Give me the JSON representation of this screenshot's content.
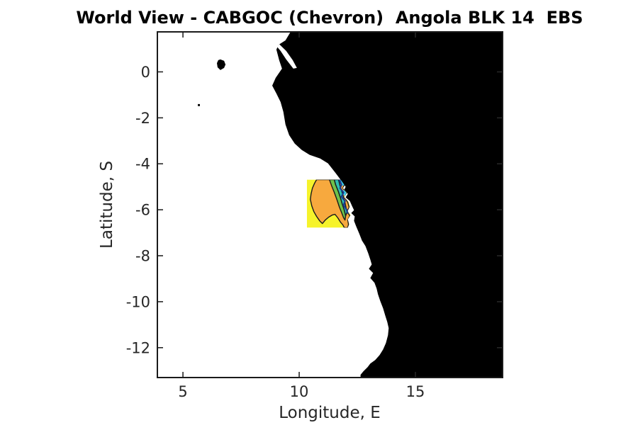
{
  "title": "World View - CABGOC (Chevron)  Angola BLK 14  EBS",
  "axes": {
    "xlabel": "Longitude, E",
    "ylabel": "Latitude, S",
    "xlim": [
      3.9,
      18.75
    ],
    "ylim": [
      -13.3,
      1.74
    ],
    "xticks": [
      5,
      10,
      15
    ],
    "xtick_labels": [
      "5",
      "10",
      "15"
    ],
    "yticks": [
      0,
      -2,
      -4,
      -6,
      -8,
      -10,
      -12
    ],
    "ytick_labels": [
      "0",
      "-2",
      "-4",
      "-6",
      "-8",
      "-10",
      "-12"
    ],
    "tick_color": "#262626",
    "frame_color": "#1a1a1a"
  },
  "chart_data": {
    "type": "heatmap",
    "subtype": "coastline-map-with-contourf-block",
    "ocean_color": "#ffffff",
    "land_color": "#000000",
    "coastline_mainland": [
      [
        9.63,
        1.74
      ],
      [
        9.41,
        1.37
      ],
      [
        9.11,
        1.18
      ],
      [
        9.02,
        0.97
      ],
      [
        9.14,
        0.51
      ],
      [
        9.26,
        0.14
      ],
      [
        8.99,
        -0.26
      ],
      [
        8.84,
        -0.6
      ],
      [
        9.02,
        -0.94
      ],
      [
        9.2,
        -1.31
      ],
      [
        9.32,
        -1.74
      ],
      [
        9.41,
        -2.29
      ],
      [
        9.57,
        -2.75
      ],
      [
        9.81,
        -3.12
      ],
      [
        10.11,
        -3.4
      ],
      [
        10.45,
        -3.61
      ],
      [
        10.9,
        -3.77
      ],
      [
        11.24,
        -3.98
      ],
      [
        11.55,
        -4.38
      ],
      [
        11.85,
        -4.78
      ],
      [
        12.0,
        -5.0
      ],
      [
        11.94,
        -5.12
      ],
      [
        12.09,
        -5.31
      ],
      [
        12.0,
        -5.46
      ],
      [
        12.18,
        -5.62
      ],
      [
        12.27,
        -5.83
      ],
      [
        12.36,
        -6.02
      ],
      [
        12.24,
        -6.14
      ],
      [
        12.39,
        -6.29
      ],
      [
        12.36,
        -6.48
      ],
      [
        12.45,
        -6.72
      ],
      [
        12.58,
        -7.03
      ],
      [
        12.7,
        -7.34
      ],
      [
        12.85,
        -7.58
      ],
      [
        12.97,
        -7.89
      ],
      [
        13.06,
        -8.17
      ],
      [
        13.12,
        -8.38
      ],
      [
        13.0,
        -8.57
      ],
      [
        13.18,
        -8.75
      ],
      [
        13.06,
        -8.97
      ],
      [
        13.24,
        -9.18
      ],
      [
        13.33,
        -9.43
      ],
      [
        13.39,
        -9.68
      ],
      [
        13.49,
        -9.98
      ],
      [
        13.61,
        -10.29
      ],
      [
        13.7,
        -10.6
      ],
      [
        13.79,
        -10.88
      ],
      [
        13.85,
        -11.15
      ],
      [
        13.82,
        -11.46
      ],
      [
        13.73,
        -11.8
      ],
      [
        13.61,
        -12.08
      ],
      [
        13.46,
        -12.32
      ],
      [
        13.27,
        -12.54
      ],
      [
        13.06,
        -12.69
      ],
      [
        12.94,
        -12.85
      ],
      [
        12.76,
        -13.03
      ],
      [
        12.64,
        -13.18
      ],
      [
        12.64,
        -13.35
      ],
      [
        18.8,
        -13.35
      ],
      [
        18.8,
        1.79
      ]
    ],
    "estuary_inlet": [
      [
        9.14,
        1.21
      ],
      [
        9.44,
        0.91
      ],
      [
        9.72,
        0.51
      ],
      [
        9.9,
        0.17
      ],
      [
        9.75,
        0.14
      ],
      [
        9.44,
        0.54
      ],
      [
        9.2,
        0.91
      ],
      [
        9.05,
        1.09
      ]
    ],
    "islands": [
      {
        "name": "island-sao-tome",
        "points": [
          [
            6.61,
            0.54
          ],
          [
            6.77,
            0.48
          ],
          [
            6.83,
            0.32
          ],
          [
            6.77,
            0.17
          ],
          [
            6.61,
            0.08
          ],
          [
            6.49,
            0.2
          ],
          [
            6.46,
            0.38
          ],
          [
            6.52,
            0.51
          ]
        ]
      },
      {
        "name": "island-annobon",
        "points": [
          [
            5.64,
            -1.4
          ],
          [
            5.73,
            -1.4
          ],
          [
            5.73,
            -1.49
          ],
          [
            5.64,
            -1.49
          ]
        ]
      }
    ],
    "survey_block": {
      "bounds_lon": [
        10.33,
        12.34
      ],
      "bounds_lat": [
        -6.78,
        -4.69
      ],
      "clip": [
        [
          10.33,
          -4.69
        ],
        [
          11.94,
          -4.69
        ],
        [
          12.0,
          -4.88
        ],
        [
          11.88,
          -5.06
        ],
        [
          12.06,
          -5.25
        ],
        [
          11.94,
          -5.46
        ],
        [
          12.12,
          -5.65
        ],
        [
          12.18,
          -5.86
        ],
        [
          12.09,
          -6.05
        ],
        [
          12.21,
          -6.23
        ],
        [
          12.09,
          -6.42
        ],
        [
          12.15,
          -6.63
        ],
        [
          12.09,
          -6.78
        ],
        [
          10.33,
          -6.78
        ]
      ],
      "bands": [
        {
          "name": "band-yellow",
          "color": "#F6F32B",
          "stroke": "none",
          "points": [
            [
              10.33,
              -4.69
            ],
            [
              12.34,
              -4.69
            ],
            [
              12.34,
              -6.78
            ],
            [
              10.33,
              -6.78
            ]
          ]
        },
        {
          "name": "band-orange",
          "color": "#F7A93E",
          "stroke": "#1a1a1a",
          "points": [
            [
              10.75,
              -4.69
            ],
            [
              10.66,
              -4.85
            ],
            [
              10.57,
              -5.06
            ],
            [
              10.51,
              -5.31
            ],
            [
              10.48,
              -5.55
            ],
            [
              10.54,
              -5.83
            ],
            [
              10.63,
              -6.08
            ],
            [
              10.75,
              -6.29
            ],
            [
              10.88,
              -6.48
            ],
            [
              11.0,
              -6.6
            ],
            [
              11.12,
              -6.45
            ],
            [
              11.27,
              -6.32
            ],
            [
              11.42,
              -6.23
            ],
            [
              11.54,
              -6.2
            ],
            [
              11.66,
              -6.35
            ],
            [
              11.78,
              -6.54
            ],
            [
              11.88,
              -6.66
            ],
            [
              11.94,
              -6.78
            ],
            [
              12.09,
              -6.78
            ],
            [
              12.12,
              -6.63
            ],
            [
              12.09,
              -6.45
            ],
            [
              12.18,
              -6.26
            ],
            [
              12.06,
              -6.08
            ],
            [
              12.15,
              -5.89
            ],
            [
              12.09,
              -5.68
            ],
            [
              11.97,
              -5.49
            ],
            [
              12.03,
              -5.28
            ],
            [
              11.88,
              -5.06
            ],
            [
              11.97,
              -4.85
            ],
            [
              11.91,
              -4.69
            ]
          ]
        },
        {
          "name": "band-green",
          "color": "#6FC24A",
          "stroke": "#1a1a1a",
          "points": [
            [
              11.3,
              -4.69
            ],
            [
              11.39,
              -4.94
            ],
            [
              11.51,
              -5.25
            ],
            [
              11.63,
              -5.58
            ],
            [
              11.72,
              -5.86
            ],
            [
              11.82,
              -6.11
            ],
            [
              11.91,
              -6.35
            ],
            [
              11.97,
              -6.45
            ],
            [
              12.0,
              -6.26
            ],
            [
              11.94,
              -6.02
            ],
            [
              11.85,
              -5.74
            ],
            [
              11.78,
              -5.49
            ],
            [
              11.69,
              -5.22
            ],
            [
              11.57,
              -4.91
            ],
            [
              11.51,
              -4.69
            ]
          ]
        },
        {
          "name": "band-teal",
          "color": "#2EBFB4",
          "stroke": "#1a1a1a",
          "points": [
            [
              11.51,
              -4.69
            ],
            [
              11.57,
              -4.91
            ],
            [
              11.69,
              -5.22
            ],
            [
              11.78,
              -5.49
            ],
            [
              11.85,
              -5.74
            ],
            [
              11.94,
              -6.02
            ],
            [
              12.0,
              -6.26
            ],
            [
              12.06,
              -6.11
            ],
            [
              12.0,
              -5.83
            ],
            [
              11.94,
              -5.55
            ],
            [
              11.85,
              -5.25
            ],
            [
              11.76,
              -4.97
            ],
            [
              11.69,
              -4.69
            ]
          ]
        },
        {
          "name": "band-lightblue-a",
          "color": "#3FCFEC",
          "stroke": "none",
          "points": [
            [
              11.76,
              -4.69
            ],
            [
              11.94,
              -4.69
            ],
            [
              12.0,
              -4.85
            ],
            [
              11.88,
              -4.97
            ],
            [
              11.76,
              -4.82
            ]
          ]
        },
        {
          "name": "band-lightblue-b",
          "color": "#3FCFEC",
          "stroke": "none",
          "points": [
            [
              11.91,
              -5.12
            ],
            [
              12.03,
              -5.25
            ],
            [
              11.97,
              -5.43
            ],
            [
              11.88,
              -5.28
            ]
          ]
        }
      ],
      "contour_line_color": "#1A3B8F",
      "contour_line": [
        [
          11.73,
          -4.69
        ],
        [
          11.82,
          -4.91
        ],
        [
          11.76,
          -5.06
        ],
        [
          11.91,
          -5.25
        ],
        [
          11.82,
          -5.43
        ],
        [
          11.97,
          -5.62
        ],
        [
          11.91,
          -5.8
        ],
        [
          12.03,
          -5.98
        ],
        [
          12.09,
          -6.14
        ]
      ]
    }
  }
}
